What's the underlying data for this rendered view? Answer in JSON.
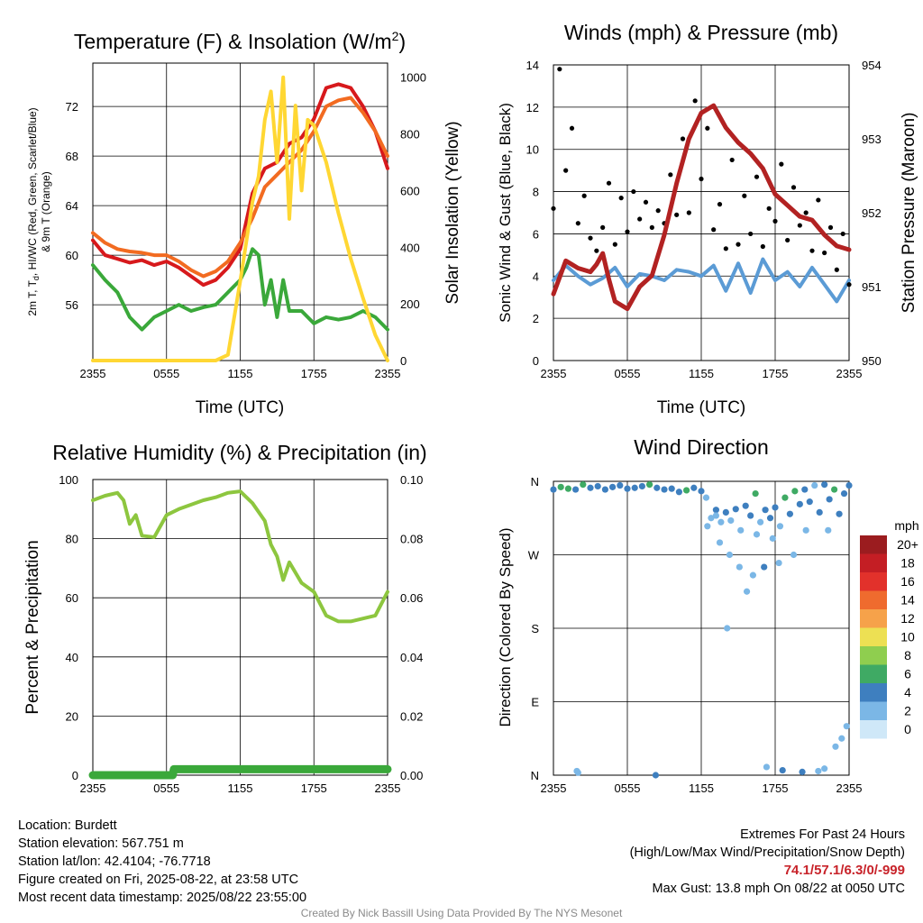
{
  "charts": {
    "temperature": {
      "title": "Temperature (F) & Insolation (W/m²)",
      "title_main": "Temperature (F) & Insolation (W/m",
      "title_sup": "2",
      "title_end": ")",
      "ylabel_left_line1": "2m T, T",
      "ylabel_left_sub": "d",
      "ylabel_left_line1_rest": ", HI/WC (Red, Green, Scarlet/Blue)",
      "ylabel_left_line2": "& 9m T (Orange)",
      "ylabel_right": "Solar Insolation (Yellow)",
      "xlabel": "Time (UTC)"
    },
    "winds": {
      "title": "Winds (mph) & Pressure (mb)",
      "ylabel_left": "Sonic Wind & Gust (Blue, Black)",
      "ylabel_right": "Station Pressure (Maroon)",
      "xlabel": "Time (UTC)"
    },
    "humidity": {
      "title": "Relative Humidity (%) & Precipitation (in)",
      "ylabel_left": "Percent & Precipitation",
      "xlabel": ""
    },
    "direction": {
      "title": "Wind Direction",
      "ylabel_left": "Direction (Colored By Speed)",
      "legend_title": "mph"
    }
  },
  "chart_data": [
    {
      "id": "temperature",
      "type": "line",
      "x_ticks": [
        "2355",
        "0555",
        "1155",
        "1755",
        "2355"
      ],
      "x_hours_utc": [
        0,
        6,
        12,
        18,
        24
      ],
      "ylim": [
        51.5,
        75.5
      ],
      "y_ticks": [
        56,
        60,
        64,
        68,
        72
      ],
      "y2lim": [
        0,
        1050
      ],
      "y2_ticks": [
        0,
        200,
        400,
        600,
        800,
        1000
      ],
      "series": [
        {
          "color": "#d7191c",
          "axis": "left",
          "x": [
            0,
            1,
            2,
            3,
            4,
            5,
            6,
            7,
            8,
            9,
            10,
            11,
            12,
            13,
            14,
            15,
            16,
            17,
            18,
            19,
            20,
            21,
            22,
            23,
            24
          ],
          "y": [
            61.2,
            60.0,
            59.7,
            59.4,
            59.6,
            59.2,
            59.5,
            59.0,
            58.3,
            57.6,
            58.0,
            59.0,
            60.5,
            65.0,
            67.0,
            67.5,
            69.0,
            69.5,
            71.0,
            73.5,
            73.8,
            73.5,
            72.0,
            70.0,
            67.0
          ]
        },
        {
          "color": "#f26b21",
          "axis": "left",
          "x": [
            0,
            1,
            2,
            3,
            4,
            5,
            6,
            7,
            8,
            9,
            10,
            11,
            12,
            13,
            14,
            15,
            16,
            17,
            18,
            19,
            20,
            21,
            22,
            23,
            24
          ],
          "y": [
            61.8,
            61.0,
            60.5,
            60.3,
            60.2,
            60.0,
            60.0,
            59.5,
            58.8,
            58.3,
            58.7,
            59.5,
            61.0,
            63.0,
            65.5,
            66.5,
            67.5,
            68.5,
            70.0,
            72.0,
            72.5,
            72.7,
            71.5,
            70.0,
            68.0
          ]
        },
        {
          "color": "#3aa83a",
          "axis": "left",
          "x": [
            0,
            1,
            1.5,
            2,
            3,
            4,
            5,
            6,
            7,
            8,
            9,
            10,
            11,
            12,
            12.5,
            13,
            13.5,
            14,
            14.5,
            15,
            15.5,
            16,
            17,
            18,
            19,
            20,
            21,
            22,
            23,
            24
          ],
          "y": [
            59.2,
            58.0,
            57.5,
            57.0,
            55.0,
            54.0,
            55.0,
            55.5,
            56.0,
            55.5,
            55.8,
            56.0,
            57.0,
            58.0,
            59.0,
            60.5,
            60.0,
            56.0,
            58.0,
            55.0,
            58.0,
            55.5,
            55.5,
            54.5,
            55.0,
            54.8,
            55.0,
            55.5,
            55.0,
            54.0
          ]
        },
        {
          "color": "#ffd733",
          "axis": "right",
          "x": [
            0,
            1,
            2,
            3,
            4,
            5,
            6,
            7,
            8,
            9,
            10,
            11,
            11.5,
            12,
            12.5,
            13,
            13.5,
            14,
            14.5,
            15,
            15.5,
            16,
            16.5,
            17,
            17.5,
            18,
            19,
            20,
            21,
            22,
            23,
            24
          ],
          "y": [
            0,
            0,
            0,
            0,
            0,
            0,
            0,
            0,
            0,
            0,
            0,
            20,
            150,
            280,
            420,
            560,
            650,
            850,
            950,
            700,
            1000,
            500,
            900,
            600,
            850,
            830,
            700,
            520,
            360,
            220,
            90,
            0
          ]
        }
      ]
    },
    {
      "id": "winds",
      "type": "line",
      "x_ticks": [
        "2355",
        "0555",
        "1155",
        "1755",
        "2355"
      ],
      "x_hours_utc": [
        0,
        6,
        12,
        18,
        24
      ],
      "ylim": [
        0,
        14
      ],
      "y_ticks": [
        0,
        2,
        4,
        6,
        8,
        10,
        12,
        14
      ],
      "y2lim": [
        950,
        954
      ],
      "y2_ticks": [
        950,
        951,
        952,
        953,
        954
      ],
      "series": [
        {
          "color": "#5b9bd5",
          "axis": "left",
          "x": [
            0,
            1,
            2,
            3,
            4,
            5,
            6,
            7,
            8,
            9,
            10,
            11,
            12,
            13,
            14,
            15,
            16,
            17,
            18,
            19,
            20,
            21,
            22,
            23,
            24
          ],
          "y": [
            3.8,
            4.5,
            4.0,
            3.6,
            3.9,
            4.4,
            3.5,
            4.1,
            4.0,
            3.8,
            4.3,
            4.2,
            4.0,
            4.5,
            3.3,
            4.6,
            3.2,
            4.8,
            3.8,
            4.2,
            3.5,
            4.4,
            3.6,
            2.8,
            3.8
          ]
        },
        {
          "color": "#000000",
          "axis": "left",
          "render": "points",
          "x": [
            0,
            0.5,
            1,
            1.5,
            2,
            2.5,
            3,
            3.5,
            4,
            4.5,
            5,
            5.5,
            6,
            6.5,
            7,
            7.5,
            8,
            8.5,
            9,
            9.5,
            10,
            10.5,
            11,
            11.5,
            12,
            12.5,
            13,
            13.5,
            14,
            14.5,
            15,
            15.5,
            16,
            16.5,
            17,
            17.5,
            18,
            18.5,
            19,
            19.5,
            20,
            20.5,
            21,
            21.5,
            22,
            22.5,
            23,
            23.5,
            24
          ],
          "y": [
            7.2,
            13.8,
            9.0,
            11.0,
            6.5,
            7.8,
            5.8,
            5.2,
            6.3,
            8.4,
            5.5,
            7.7,
            6.1,
            8.0,
            6.7,
            7.5,
            6.3,
            7.1,
            6.5,
            8.8,
            6.9,
            10.5,
            7.0,
            12.3,
            8.6,
            11.0,
            6.2,
            7.4,
            5.3,
            9.5,
            5.5,
            7.8,
            6.0,
            8.7,
            5.4,
            7.2,
            6.6,
            9.3,
            5.7,
            8.2,
            6.4,
            7.0,
            5.2,
            7.6,
            5.1,
            6.3,
            4.3,
            6.0,
            3.6
          ]
        },
        {
          "color": "#b22222",
          "axis": "right",
          "x": [
            0,
            1,
            2,
            3,
            3.5,
            4,
            4.5,
            5,
            6,
            7,
            8,
            9,
            10,
            11,
            12,
            13,
            14,
            15,
            16,
            17,
            18,
            19,
            20,
            21,
            22,
            23,
            24
          ],
          "y": [
            950.9,
            951.35,
            951.25,
            951.2,
            951.3,
            951.45,
            951.1,
            950.8,
            950.7,
            951.0,
            951.15,
            951.7,
            952.4,
            953.0,
            953.35,
            953.45,
            953.15,
            952.95,
            952.8,
            952.6,
            952.25,
            952.1,
            951.95,
            951.9,
            951.7,
            951.55,
            951.5
          ]
        }
      ]
    },
    {
      "id": "humidity",
      "type": "line",
      "x_ticks": [
        "2355",
        "0555",
        "1155",
        "1755",
        "2355"
      ],
      "x_hours_utc": [
        0,
        6,
        12,
        18,
        24
      ],
      "ylim": [
        0,
        100
      ],
      "y_ticks": [
        0,
        20,
        40,
        60,
        80,
        100
      ],
      "y2lim": [
        0,
        0.1
      ],
      "y2_ticks": [
        "0.00",
        "0.02",
        "0.04",
        "0.06",
        "0.08",
        "0.10"
      ],
      "series": [
        {
          "color": "#8dc63f",
          "axis": "left",
          "x": [
            0,
            1,
            2,
            2.5,
            3,
            3.5,
            4,
            5,
            6,
            7,
            8,
            9,
            10,
            11,
            12,
            13,
            14,
            14.5,
            15,
            15.5,
            16,
            17,
            18,
            19,
            20,
            21,
            22,
            23,
            24
          ],
          "y": [
            93,
            94.5,
            95.5,
            93,
            85,
            88,
            81,
            80.5,
            88,
            90,
            91.5,
            93,
            94,
            95.5,
            96,
            92,
            86,
            78,
            74,
            66,
            72,
            65,
            62,
            54,
            52,
            52,
            53,
            54,
            62
          ]
        },
        {
          "color": "#3aa83a",
          "axis": "right",
          "x": [
            0,
            6.5,
            6.6,
            24
          ],
          "y": [
            0.0,
            0.0,
            0.002,
            0.002
          ]
        }
      ]
    },
    {
      "id": "direction",
      "type": "scatter",
      "x_ticks": [
        "2355",
        "0555",
        "1155",
        "1755",
        "2355"
      ],
      "x_hours_utc": [
        0,
        6,
        12,
        18,
        24
      ],
      "ylim": [
        0,
        360
      ],
      "y_ticks": [
        "N",
        "E",
        "S",
        "W",
        "N"
      ],
      "legend": {
        "title": "mph",
        "labels": [
          "20+",
          "18",
          "16",
          "14",
          "12",
          "10",
          "8",
          "6",
          "4",
          "2",
          "0"
        ],
        "colors": [
          "#9b1c1f",
          "#c41e24",
          "#e2312b",
          "#ef6b2e",
          "#f6a24a",
          "#ede053",
          "#8fce4f",
          "#3faa64",
          "#3e7fbf",
          "#7bb7e6",
          "#cfe8f8"
        ]
      },
      "points": {
        "x": [
          0,
          0.6,
          1.2,
          1.8,
          2.4,
          3,
          3.6,
          4.2,
          4.8,
          5.4,
          6,
          6.6,
          7.2,
          7.8,
          8.4,
          9,
          9.6,
          10.2,
          10.8,
          11.4,
          12,
          12.4,
          12.8,
          13.2,
          13.6,
          14,
          14.4,
          14.8,
          15.2,
          15.6,
          16,
          16.4,
          16.8,
          17.2,
          17.6,
          18,
          18.4,
          18.8,
          19.2,
          19.6,
          20,
          20.4,
          20.8,
          21.2,
          21.6,
          22,
          22.4,
          22.8,
          23.2,
          23.6,
          24,
          13.5,
          14.3,
          15.1,
          16.2,
          17.1,
          18.3,
          22.3,
          1.9,
          2.0,
          8.3,
          17.3,
          18.6,
          20.2,
          21.5,
          22.0,
          22.9,
          23.4,
          23.8,
          14.1,
          15.7,
          12.5,
          13.2,
          16.5,
          17.8,
          19.5,
          20.5
        ],
        "y": [
          350,
          353,
          351,
          350,
          356,
          352,
          354,
          350,
          353,
          355,
          351,
          352,
          354,
          356,
          352,
          350,
          351,
          347,
          349,
          352,
          348,
          340,
          315,
          325,
          310,
          322,
          312,
          326,
          300,
          330,
          318,
          345,
          310,
          325,
          315,
          328,
          305,
          340,
          320,
          348,
          332,
          350,
          335,
          355,
          322,
          356,
          338,
          350,
          320,
          345,
          355,
          285,
          270,
          255,
          245,
          255,
          260,
          300,
          5,
          3,
          0,
          10,
          6,
          4,
          5,
          8,
          35,
          45,
          60,
          180,
          225,
          305,
          318,
          295,
          290,
          270,
          300
        ],
        "speed": [
          4,
          5,
          5,
          4,
          6,
          4,
          4,
          3,
          4,
          4,
          4,
          4,
          4,
          5,
          4,
          4,
          3,
          4,
          6,
          4,
          3,
          2,
          2,
          3,
          2,
          4,
          2,
          3,
          2,
          4,
          3,
          6,
          2,
          4,
          3,
          4,
          2,
          5,
          3,
          5,
          4,
          4,
          3,
          2,
          4,
          3,
          4,
          5,
          4,
          3,
          3,
          2,
          2,
          2,
          2,
          3,
          2,
          2,
          2,
          2,
          3,
          2,
          3,
          3,
          2,
          2,
          2,
          2,
          2,
          2,
          2,
          2,
          2,
          2,
          2,
          2,
          2
        ]
      }
    }
  ],
  "info": {
    "location": "Location: Burdett",
    "elevation": "Station elevation: 567.751 m",
    "latlon": "Station lat/lon: 42.4104; -76.7718",
    "created": "Figure created on Fri, 2025-08-22, at 23:58 UTC",
    "recent": "Most recent data timestamp: 2025/08/22 23:55:00"
  },
  "extremes": {
    "title": "Extremes For Past 24 Hours",
    "subtitle": "(High/Low/Max Wind/Precipitation/Snow Depth)",
    "values": "74.1/57.1/6.3/0/-999",
    "gust": "Max Gust: 13.8 mph On 08/22 at 0050 UTC",
    "color": "#c8232a"
  },
  "credit": "Created By Nick Bassill Using Data Provided By The NYS Mesonet"
}
